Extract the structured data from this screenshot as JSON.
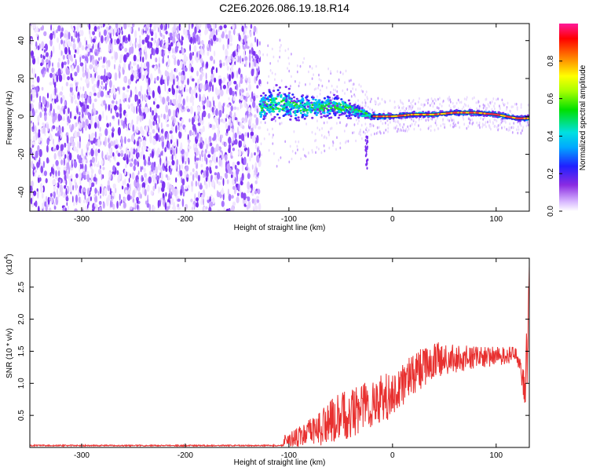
{
  "title": "C2E6.2026.086.19.18.R14",
  "colors": {
    "snr_line": "#e8302f",
    "axis": "#000000",
    "spectrogram_noise": "#7a2ff0",
    "spectrogram_peak": "#ff3a3a"
  },
  "chart_data": [
    {
      "type": "heatmap",
      "name": "spectrogram",
      "xlabel": "Height of straight line (km)",
      "ylabel": "Frequency (Hz)",
      "xlim": [
        -350,
        132
      ],
      "ylim": [
        -50,
        49
      ],
      "xticks": [
        -300,
        -200,
        -100,
        0,
        100
      ],
      "yticks": [
        -40,
        -20,
        0,
        20,
        40
      ],
      "noise_region_km": [
        -350,
        -128
      ],
      "signal_region_km": [
        -128,
        132
      ],
      "signal_track": {
        "x": [
          -128,
          -110,
          -90,
          -70,
          -50,
          -35,
          -20,
          0,
          20,
          40,
          60,
          80,
          100,
          120,
          132
        ],
        "freq_hz": [
          5,
          7,
          5,
          5,
          5,
          3,
          0,
          0,
          1,
          1,
          2,
          2,
          1,
          -1,
          -1
        ],
        "spread_hz": [
          9,
          10,
          8,
          7,
          6,
          4,
          2,
          1.5,
          1.5,
          1.5,
          1.5,
          1.5,
          1.5,
          1.5,
          1.5
        ]
      },
      "tail_feature": {
        "x": -25,
        "freq_hz_range": [
          -10,
          -28
        ]
      },
      "colorbar": {
        "label": "Normalized spectral amplitude",
        "range": [
          0,
          1
        ],
        "ticks": [
          "0.0",
          "0.2",
          "0.4",
          "0.6",
          "0.8"
        ],
        "tick_values": [
          0.0,
          0.2,
          0.4,
          0.6,
          0.8
        ]
      }
    },
    {
      "type": "line",
      "name": "snr",
      "xlabel": "Height of straight line (km)",
      "ylabel": "SNR (10 * v/v)",
      "scale_label": "(x10",
      "scale_exponent": "4",
      "scale_close": ")",
      "xlim": [
        -350,
        132
      ],
      "ylim": [
        0,
        2.95
      ],
      "xticks": [
        -300,
        -200,
        -100,
        0,
        100
      ],
      "yticks": [
        0.5,
        1.0,
        1.5,
        2.0,
        2.5
      ],
      "ytick_labels": [
        "0.5",
        "1.0",
        "1.5",
        "2.0",
        "2.5"
      ],
      "envelope": {
        "x": [
          -350,
          -106,
          -104,
          -100,
          -80,
          -60,
          -40,
          -20,
          0,
          20,
          40,
          60,
          80,
          100,
          120,
          128,
          130,
          132
        ],
        "mean": [
          0.03,
          0.03,
          0.15,
          0.12,
          0.22,
          0.4,
          0.55,
          0.7,
          0.82,
          1.15,
          1.35,
          1.38,
          1.4,
          1.42,
          1.45,
          0.9,
          1.6,
          2.9
        ],
        "spread": [
          0.01,
          0.01,
          0.12,
          0.1,
          0.22,
          0.35,
          0.4,
          0.42,
          0.35,
          0.32,
          0.3,
          0.22,
          0.18,
          0.15,
          0.12,
          0.25,
          0.6,
          0.1
        ]
      }
    }
  ]
}
